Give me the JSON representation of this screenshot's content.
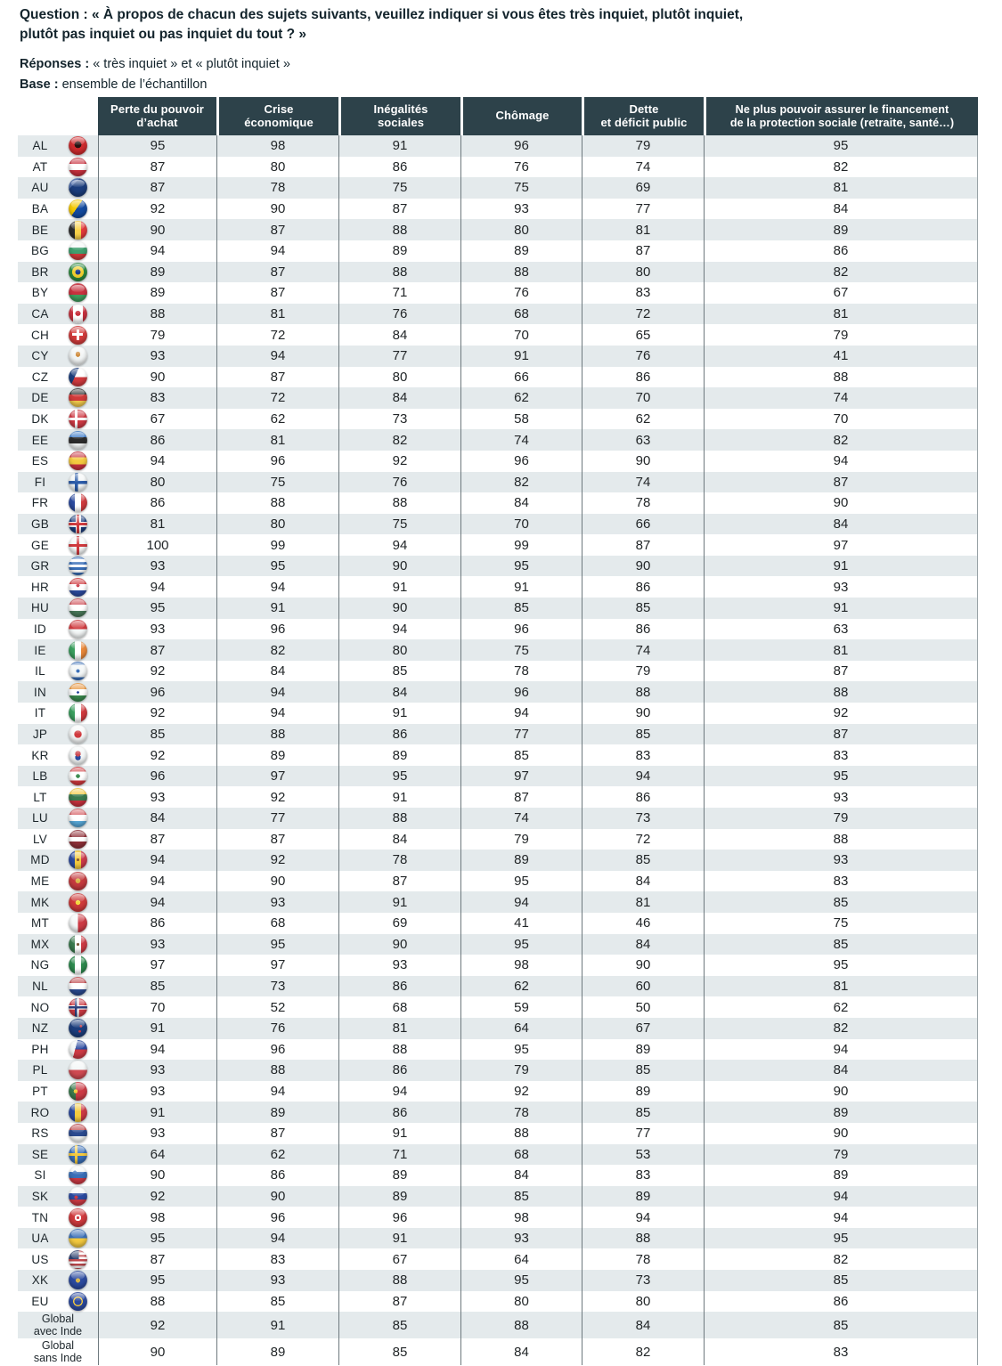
{
  "meta": {
    "question_label": "Question :",
    "question_line1": "« À propos de chacun des sujets suivants, veuillez indiquer si vous êtes très inquiet, plutôt inquiet,",
    "question_line2": "plutôt pas inquiet ou pas inquiet du tout ? »",
    "responses_label": "Réponses :",
    "responses_text": "« très inquiet » et « plutôt inquiet »",
    "base_label": "Base :",
    "base_text": "ensemble de l’échantillon"
  },
  "colors": {
    "header_bg": "#2d424a",
    "row_alt": "#e4eaec",
    "row_plain": "#ffffff",
    "grid_line": "#6e797e",
    "text_dark": "#13242c"
  },
  "chart_data": {
    "type": "table",
    "columns": [
      {
        "label": "Perte du pouvoir d’achat",
        "lines": [
          "Perte du pouvoir",
          "d’achat"
        ]
      },
      {
        "label": "Crise économique",
        "lines": [
          "Crise",
          "économique"
        ]
      },
      {
        "label": "Inégalités sociales",
        "lines": [
          "Inégalités",
          "sociales"
        ]
      },
      {
        "label": "Chômage",
        "lines": [
          "Chômage"
        ]
      },
      {
        "label": "Dette et déficit public",
        "lines": [
          "Dette",
          "et déficit public"
        ]
      },
      {
        "label": "Ne plus pouvoir assurer le financement de la protection sociale (retraite, santé…)",
        "lines": [
          "Ne plus pouvoir assurer le financement",
          "de la protection sociale (retraite, santé…)"
        ]
      }
    ],
    "rows": [
      {
        "code": "AL",
        "values": [
          95,
          98,
          91,
          96,
          79,
          95
        ],
        "flag_css": "radial-gradient(circle at 50% 45%, #26100f 0 24%, #d02b2e 25%)"
      },
      {
        "code": "AT",
        "values": [
          87,
          80,
          86,
          76,
          74,
          82
        ],
        "flag_css": "linear-gradient(to bottom, #c8313e 0 33%, #ffffff 33% 66%, #c8313e 66%)"
      },
      {
        "code": "AU",
        "values": [
          87,
          78,
          75,
          75,
          69,
          81
        ],
        "flag_css": "linear-gradient(135deg, #4a6aa8 0 30%, #1b3d7c 30%)"
      },
      {
        "code": "BA",
        "values": [
          92,
          90,
          87,
          93,
          77,
          84
        ],
        "flag_css": "linear-gradient(125deg, #f5c900 0 45%, #134a9f 45%)"
      },
      {
        "code": "BE",
        "values": [
          90,
          87,
          88,
          80,
          81,
          89
        ],
        "flag_css": "linear-gradient(to right, #2b2b2b 0 33%, #f7d04a 33% 66%, #e23a3c 66%)"
      },
      {
        "code": "BG",
        "values": [
          94,
          94,
          89,
          89,
          87,
          86
        ],
        "flag_css": "linear-gradient(to bottom, #f4f7f7 0 33%, #3f9f6e 33% 66%, #cf3a3a 66%)"
      },
      {
        "code": "BR",
        "values": [
          89,
          87,
          88,
          88,
          80,
          82
        ],
        "flag_css": "radial-gradient(circle at 50% 50%, #1b3d8f 0 20%, #f3cf2f 20% 44%, #2c8a3e 44%)"
      },
      {
        "code": "BY",
        "values": [
          89,
          87,
          71,
          76,
          83,
          67
        ],
        "flag_css": "linear-gradient(to bottom, #c8313e 0 62%, #3f9f5e 62%)"
      },
      {
        "code": "CA",
        "values": [
          88,
          81,
          76,
          68,
          72,
          81
        ],
        "flag_css": "radial-gradient(circle at 50% 47%, #c8313e 0 19%, rgba(0,0,0,0) 20%), linear-gradient(to right, #c8313e 0 24%, #ffffff 24% 76%, #c8313e 76%)"
      },
      {
        "code": "CH",
        "values": [
          79,
          72,
          84,
          70,
          65,
          79
        ],
        "flag_css": "linear-gradient(#ffffff,#ffffff) 50% 50%/58% 16% no-repeat, linear-gradient(#ffffff,#ffffff) 50% 50%/16% 58% no-repeat, #d33b3b"
      },
      {
        "code": "CY",
        "values": [
          93,
          94,
          77,
          91,
          76,
          41
        ],
        "flag_css": "radial-gradient(ellipse at 50% 42%, #cf8a3b 0 17%, rgba(0,0,0,0) 18%), #f2f5f5"
      },
      {
        "code": "CZ",
        "values": [
          90,
          87,
          80,
          66,
          86,
          88
        ],
        "flag_css": "linear-gradient(115deg, #1b3d7c 0 38%, rgba(0,0,0,0) 38%), linear-gradient(to bottom, #ffffff 0 50%, #d03a3e 50%)"
      },
      {
        "code": "DE",
        "values": [
          83,
          72,
          84,
          62,
          70,
          74
        ],
        "flag_css": "linear-gradient(to bottom, #2b2b2b 0 33%, #d03a3a 33% 66%, #f2c94c 66%)"
      },
      {
        "code": "DK",
        "values": [
          67,
          62,
          73,
          58,
          62,
          70
        ],
        "flag_css": "linear-gradient(#ffffff,#ffffff) 50% 50%/100% 15% no-repeat, linear-gradient(#ffffff,#ffffff) 38% 50%/15% 100% no-repeat, #ce3a44"
      },
      {
        "code": "EE",
        "values": [
          86,
          81,
          82,
          74,
          63,
          82
        ],
        "flag_css": "linear-gradient(to bottom, #3a7ac8 0 33%, #2b2b2b 33% 66%, #f2f5f5 66%)"
      },
      {
        "code": "ES",
        "values": [
          94,
          96,
          92,
          96,
          90,
          94
        ],
        "flag_css": "linear-gradient(to bottom, #c8313e 0 30%, #f3c93f 30% 70%, #c8313e 70%)"
      },
      {
        "code": "FI",
        "values": [
          80,
          75,
          76,
          82,
          74,
          87
        ],
        "flag_css": "linear-gradient(#2b5ba8,#2b5ba8) 50% 50%/100% 17% no-repeat, linear-gradient(#2b5ba8,#2b5ba8) 40% 50%/17% 100% no-repeat, #f4f7f7"
      },
      {
        "code": "FR",
        "values": [
          86,
          88,
          88,
          84,
          78,
          90
        ],
        "flag_css": "linear-gradient(to right, #2b4a9f 0 33%, #ffffff 33% 66%, #d03a3e 66%)"
      },
      {
        "code": "GB",
        "values": [
          81,
          80,
          75,
          70,
          66,
          84
        ],
        "flag_css": "linear-gradient(#d03a3e,#d03a3e) 50% 50%/100% 16% no-repeat, linear-gradient(#d03a3e,#d03a3e) 50% 50%/16% 100% no-repeat, linear-gradient(#ffffff,#ffffff) 50% 50%/100% 28% no-repeat, linear-gradient(#ffffff,#ffffff) 50% 50%/28% 100% no-repeat, #1b3d7c"
      },
      {
        "code": "GE",
        "values": [
          100,
          99,
          94,
          99,
          87,
          97
        ],
        "flag_css": "linear-gradient(#d03a3e,#d03a3e) 50% 50%/100% 15% no-repeat, linear-gradient(#d03a3e,#d03a3e) 50% 50%/15% 100% no-repeat, #f4f7f7"
      },
      {
        "code": "GR",
        "values": [
          93,
          95,
          90,
          95,
          90,
          91
        ],
        "flag_css": "repeating-linear-gradient(to bottom, #3a6fb8 0 3px, #ffffff 3px 6px)"
      },
      {
        "code": "HR",
        "values": [
          94,
          94,
          91,
          91,
          86,
          93
        ],
        "flag_css": "radial-gradient(circle at 50% 40%, #c8313e 0 11%, rgba(0,0,0,0) 12%), linear-gradient(to bottom, #d03a3e 0 33%, #ffffff 33% 66%, #2b4a9f 66%)"
      },
      {
        "code": "HU",
        "values": [
          95,
          91,
          90,
          85,
          85,
          91
        ],
        "flag_css": "linear-gradient(to bottom, #cd4a52 0 33%, #ffffff 33% 66%, #4a7a5a 66%)"
      },
      {
        "code": "ID",
        "values": [
          93,
          96,
          94,
          96,
          86,
          63
        ],
        "flag_css": "linear-gradient(to bottom, #d03a3e 0 50%, #f4f7f7 50%)"
      },
      {
        "code": "IE",
        "values": [
          87,
          82,
          80,
          75,
          74,
          81
        ],
        "flag_css": "linear-gradient(to right, #3a9f5e 0 33%, #ffffff 33% 66%, #e8883a 66%)"
      },
      {
        "code": "IL",
        "values": [
          92,
          84,
          85,
          78,
          79,
          87
        ],
        "flag_css": "linear-gradient(to bottom, #3a6fb8 0 16%, rgba(0,0,0,0) 16% 84%, #3a6fb8 84%), radial-gradient(circle at 50% 50%, #3a6fb8 0 13%, rgba(0,0,0,0) 14%), #f4f7f7"
      },
      {
        "code": "IN",
        "values": [
          96,
          94,
          84,
          96,
          88,
          88
        ],
        "flag_css": "radial-gradient(circle at 50% 50%, #2b4a9f 0 9%, rgba(0,0,0,0) 10%), linear-gradient(to bottom, #e8943a 0 33%, #ffffff 33% 66%, #3a8a4e 66%)"
      },
      {
        "code": "IT",
        "values": [
          92,
          94,
          91,
          94,
          90,
          92
        ],
        "flag_css": "linear-gradient(to right, #3a9f5e 0 33%, #ffffff 33% 66%, #d03a3e 66%)"
      },
      {
        "code": "JP",
        "values": [
          85,
          88,
          86,
          77,
          85,
          87
        ],
        "flag_css": "radial-gradient(circle at 50% 50%, #d03a3e 0 28%, #f6f8f8 29%)"
      },
      {
        "code": "KR",
        "values": [
          92,
          89,
          89,
          85,
          83,
          83
        ],
        "flag_css": "radial-gradient(circle at 50% 40%, #cd4a52 0 19%, rgba(0,0,0,0) 20%), radial-gradient(circle at 50% 60%, #2b4a9f 0 19%, rgba(0,0,0,0) 20%), #f4f7f7"
      },
      {
        "code": "LB",
        "values": [
          96,
          97,
          95,
          97,
          94,
          95
        ],
        "flag_css": "radial-gradient(circle at 50% 50%, #3a8a4e 0 15%, rgba(0,0,0,0) 16%), linear-gradient(to bottom, #d03a3e 0 27%, #ffffff 27% 73%, #d03a3e 73%)"
      },
      {
        "code": "LT",
        "values": [
          93,
          92,
          91,
          87,
          86,
          93
        ],
        "flag_css": "linear-gradient(to bottom, #f3c93f 0 33%, #3a7a4e 33% 66%, #c8313e 66%)"
      },
      {
        "code": "LU",
        "values": [
          84,
          77,
          88,
          74,
          73,
          79
        ],
        "flag_css": "linear-gradient(to bottom, #d4595e 0 33%, #ffffff 33% 66%, #58a8d8 66%)"
      },
      {
        "code": "LV",
        "values": [
          87,
          87,
          84,
          79,
          72,
          88
        ],
        "flag_css": "linear-gradient(to bottom, #8f3038 0 38%, #ffffff 38% 62%, #8f3038 62%)"
      },
      {
        "code": "MD",
        "values": [
          94,
          92,
          78,
          89,
          85,
          93
        ],
        "flag_css": "radial-gradient(circle at 50% 50%, #8a5a2e 0 10%, rgba(0,0,0,0) 11%), linear-gradient(to right, #2b4a9f 0 33%, #f3c93f 33% 66%, #cc3a4a 66%)"
      },
      {
        "code": "ME",
        "values": [
          94,
          90,
          87,
          95,
          84,
          83
        ],
        "flag_css": "radial-gradient(circle at 50% 48%, #d8b44a 0 18%, #c43a3e 19%)"
      },
      {
        "code": "MK",
        "values": [
          94,
          93,
          91,
          94,
          81,
          85
        ],
        "flag_css": "radial-gradient(circle at 50% 50%, #f3d93f 0 18%, #ce3a3a 19%)"
      },
      {
        "code": "MT",
        "values": [
          86,
          68,
          69,
          41,
          46,
          75
        ],
        "flag_css": "linear-gradient(to right, #f4f7f7 0 50%, #cc3a44 50%)"
      },
      {
        "code": "MX",
        "values": [
          93,
          95,
          90,
          95,
          84,
          85
        ],
        "flag_css": "radial-gradient(circle at 50% 50%, #7a5a3a 0 11%, rgba(0,0,0,0) 12%), linear-gradient(to right, #3a7a4e 0 33%, #ffffff 33% 66%, #cc3a44 66%)"
      },
      {
        "code": "NG",
        "values": [
          97,
          97,
          93,
          98,
          90,
          95
        ],
        "flag_css": "linear-gradient(to right, #2d8a4e 0 33%, #ffffff 33% 66%, #2d8a4e 66%)"
      },
      {
        "code": "NL",
        "values": [
          85,
          73,
          86,
          62,
          60,
          81
        ],
        "flag_css": "linear-gradient(to bottom, #c04a4e 0 33%, #ffffff 33% 66%, #2b4a8f 66%)"
      },
      {
        "code": "NO",
        "values": [
          70,
          52,
          68,
          59,
          50,
          62
        ],
        "flag_css": "linear-gradient(#2b3f7c,#2b3f7c) 50% 50%/100% 12% no-repeat, linear-gradient(#2b3f7c,#2b3f7c) 40% 50%/12% 100% no-repeat, linear-gradient(#ffffff,#ffffff) 50% 50%/100% 22% no-repeat, linear-gradient(#ffffff,#ffffff) 40% 50%/22% 100% no-repeat, #cc3a44"
      },
      {
        "code": "NZ",
        "values": [
          91,
          76,
          81,
          64,
          67,
          82
        ],
        "flag_css": "radial-gradient(circle at 66% 40%, #cc3a44 0 7%, rgba(0,0,0,0) 8%), radial-gradient(circle at 60% 68%, #cc3a44 0 7%, rgba(0,0,0,0) 8%), #1b3d7c"
      },
      {
        "code": "PH",
        "values": [
          94,
          96,
          88,
          95,
          89,
          94
        ],
        "flag_css": "linear-gradient(105deg, #f2f5f5 0 38%, rgba(0,0,0,0) 38%), linear-gradient(to bottom, #2b4a9f 0 50%, #cc3a44 50%)"
      },
      {
        "code": "PL",
        "values": [
          93,
          88,
          86,
          79,
          85,
          84
        ],
        "flag_css": "linear-gradient(to bottom, #f4f7f7 0 50%, #d04a52 50%)"
      },
      {
        "code": "PT",
        "values": [
          93,
          94,
          94,
          92,
          89,
          90
        ],
        "flag_css": "radial-gradient(circle at 38% 50%, #f3c93f 0 13%, rgba(0,0,0,0) 14%), linear-gradient(to right, #3a7a4e 0 38%, #cc3a44 38%)"
      },
      {
        "code": "RO",
        "values": [
          91,
          89,
          86,
          78,
          85,
          89
        ],
        "flag_css": "linear-gradient(to right, #2b4a9f 0 33%, #f3c93f 33% 66%, #cc3a44 66%)"
      },
      {
        "code": "RS",
        "values": [
          93,
          87,
          91,
          88,
          77,
          90
        ],
        "flag_css": "linear-gradient(to bottom, #c04a4e 0 33%, #2b4a8f 33% 66%, #f4f7f7 66%)"
      },
      {
        "code": "SE",
        "values": [
          64,
          62,
          71,
          68,
          53,
          79
        ],
        "flag_css": "linear-gradient(#f3c93f,#f3c93f) 50% 50%/100% 16% no-repeat, linear-gradient(#f3c93f,#f3c93f) 40% 50%/16% 100% no-repeat, #3a6fb8"
      },
      {
        "code": "SI",
        "values": [
          90,
          86,
          89,
          84,
          83,
          89
        ],
        "flag_css": "radial-gradient(ellipse at 34% 36%, #3a6fb8 0 10%, rgba(0,0,0,0) 11%), linear-gradient(to bottom, #f4f7f7 0 33%, #3a6fb8 33% 66%, #cc3a44 66%)"
      },
      {
        "code": "SK",
        "values": [
          92,
          90,
          89,
          85,
          89,
          94
        ],
        "flag_css": "radial-gradient(ellipse at 40% 55%, #cc3a44 0 11%, rgba(0,0,0,0) 12%), linear-gradient(to bottom, #f4f7f7 0 33%, #2b4a9f 33% 66%, #cc3a44 66%)"
      },
      {
        "code": "TN",
        "values": [
          98,
          96,
          96,
          98,
          94,
          94
        ],
        "flag_css": "radial-gradient(circle at 50% 50%, #cc3a44 0 10%, #ffffff 11% 24%, #d03a3e 25%)"
      },
      {
        "code": "UA",
        "values": [
          95,
          94,
          91,
          93,
          88,
          95
        ],
        "flag_css": "linear-gradient(to bottom, #3a6fb8 0 50%, #f3c93f 50%)"
      },
      {
        "code": "US",
        "values": [
          87,
          83,
          67,
          64,
          78,
          82
        ],
        "flag_css": "linear-gradient(#2b3f6e,#2b3f6e) 0 0/55% 48% no-repeat, repeating-linear-gradient(to bottom, #c04a4e 0 2.5px, #ffffff 2.5px 5px)"
      },
      {
        "code": "XK",
        "values": [
          95,
          93,
          88,
          95,
          73,
          85
        ],
        "flag_css": "radial-gradient(circle at 50% 52%, #d8b44a 0 16%, #2b4a9f 17%)"
      },
      {
        "code": "EU",
        "values": [
          88,
          85,
          87,
          80,
          80,
          86
        ],
        "flag_css": "radial-gradient(circle at 50% 50%, rgba(0,0,0,0) 0 27%, #f3c93f 28% 36%, rgba(0,0,0,0) 37%), #2b4a9f"
      },
      {
        "label_lines": [
          "Global",
          "avec Inde"
        ],
        "values": [
          92,
          91,
          85,
          88,
          84,
          85
        ]
      },
      {
        "label_lines": [
          "Global",
          "sans Inde"
        ],
        "values": [
          90,
          89,
          85,
          84,
          82,
          83
        ]
      }
    ]
  }
}
